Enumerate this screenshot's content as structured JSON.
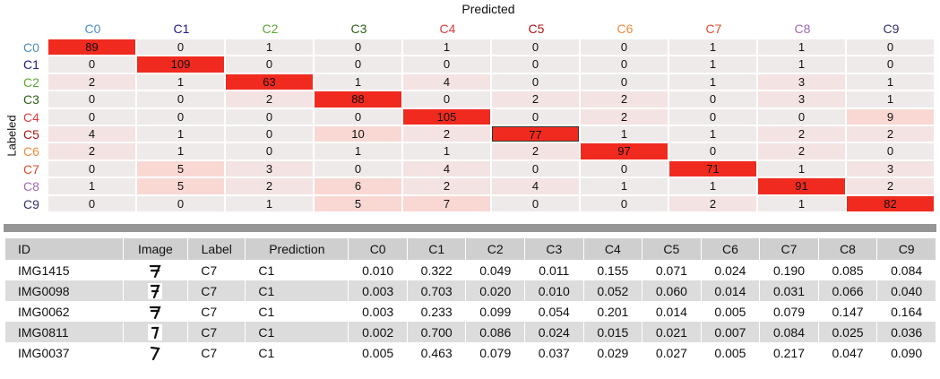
{
  "matrix": {
    "x_title": "Predicted",
    "y_title": "Labeled",
    "classes": [
      "C0",
      "C1",
      "C2",
      "C3",
      "C4",
      "C5",
      "C6",
      "C7",
      "C8",
      "C9"
    ],
    "class_colors": [
      "#4a8ec2",
      "#1b1b8a",
      "#5aa832",
      "#2e5e16",
      "#e03c3c",
      "#b01414",
      "#f08a3c",
      "#e04a2a",
      "#a06ab4",
      "#30306a"
    ],
    "values": [
      [
        89,
        0,
        1,
        0,
        1,
        0,
        0,
        1,
        1,
        0
      ],
      [
        0,
        109,
        0,
        0,
        0,
        0,
        0,
        1,
        1,
        0
      ],
      [
        2,
        1,
        63,
        1,
        4,
        0,
        0,
        1,
        3,
        1
      ],
      [
        0,
        0,
        2,
        88,
        0,
        2,
        2,
        0,
        3,
        1
      ],
      [
        0,
        0,
        0,
        0,
        105,
        0,
        2,
        0,
        0,
        9
      ],
      [
        4,
        1,
        0,
        10,
        2,
        77,
        1,
        1,
        2,
        2
      ],
      [
        2,
        1,
        0,
        1,
        1,
        2,
        97,
        0,
        2,
        0
      ],
      [
        0,
        5,
        3,
        0,
        4,
        0,
        0,
        71,
        1,
        3
      ],
      [
        1,
        5,
        2,
        6,
        2,
        4,
        1,
        1,
        91,
        2
      ],
      [
        0,
        0,
        1,
        5,
        7,
        0,
        0,
        2,
        1,
        82
      ]
    ]
  },
  "table": {
    "headers": [
      "ID",
      "Image",
      "Label",
      "Prediction",
      "C0",
      "C1",
      "C2",
      "C3",
      "C4",
      "C5",
      "C6",
      "C7",
      "C8",
      "C9"
    ],
    "rows": [
      {
        "id": "IMG1415",
        "label": "C7",
        "prediction": "C1",
        "probs": [
          "0.010",
          "0.322",
          "0.049",
          "0.011",
          "0.155",
          "0.071",
          "0.024",
          "0.190",
          "0.085",
          "0.084"
        ]
      },
      {
        "id": "IMG0098",
        "label": "C7",
        "prediction": "C1",
        "probs": [
          "0.003",
          "0.703",
          "0.020",
          "0.010",
          "0.052",
          "0.060",
          "0.014",
          "0.031",
          "0.066",
          "0.040"
        ]
      },
      {
        "id": "IMG0062",
        "label": "C7",
        "prediction": "C1",
        "probs": [
          "0.003",
          "0.233",
          "0.099",
          "0.054",
          "0.201",
          "0.014",
          "0.005",
          "0.079",
          "0.147",
          "0.164"
        ]
      },
      {
        "id": "IMG0811",
        "label": "C7",
        "prediction": "C1",
        "probs": [
          "0.002",
          "0.700",
          "0.086",
          "0.024",
          "0.015",
          "0.021",
          "0.007",
          "0.084",
          "0.025",
          "0.036"
        ]
      },
      {
        "id": "IMG0037",
        "label": "C7",
        "prediction": "C1",
        "probs": [
          "0.005",
          "0.463",
          "0.079",
          "0.037",
          "0.029",
          "0.027",
          "0.005",
          "0.217",
          "0.047",
          "0.090"
        ]
      }
    ]
  }
}
